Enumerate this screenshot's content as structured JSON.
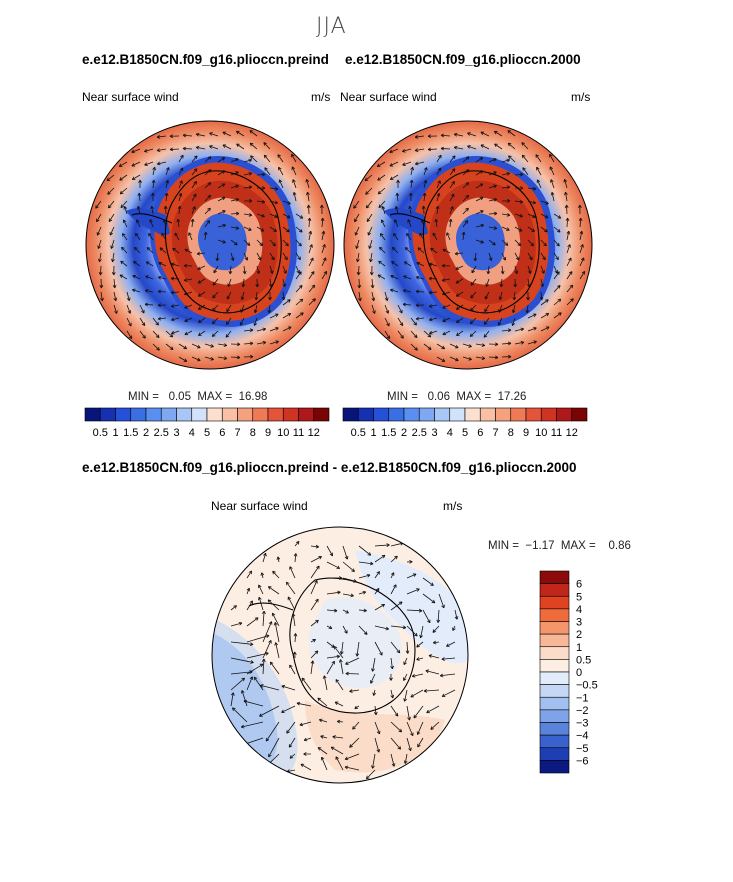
{
  "figure": {
    "season": "JJA",
    "panels": [
      {
        "title": "e.e12.B1850CN.f09_g16.plioccn.preind",
        "variable": "Near surface wind",
        "units": "m/s",
        "min_label": "MIN =",
        "min_value": "0.05",
        "max_label": "MAX =",
        "max_value": "16.98"
      },
      {
        "title": "e.e12.B1850CN.f09_g16.plioccn.2000",
        "variable": "Near surface wind",
        "units": "m/s",
        "min_label": "MIN =",
        "min_value": "0.06",
        "max_label": "MAX =",
        "max_value": "17.26"
      }
    ],
    "diff_panel": {
      "title": "e.e12.B1850CN.f09_g16.plioccn.preind - e.e12.B1850CN.f09_g16.plioccn.2000",
      "variable": "Near surface wind",
      "units": "m/s",
      "min_label": "MIN =",
      "min_value": "−1.17",
      "max_label": "MAX =",
      "max_value": "0.86"
    },
    "colorbar_abs": {
      "colors": [
        "#08147a",
        "#1530b0",
        "#2551d8",
        "#3a6fe4",
        "#5a8ef0",
        "#7fa8f2",
        "#a8c6f6",
        "#d2e2fa",
        "#fbe0d0",
        "#f9c0a6",
        "#f5a07f",
        "#ef7a56",
        "#e5543a",
        "#cf3322",
        "#b0171a",
        "#7a0404"
      ],
      "tick_labels": [
        "0.5",
        "1",
        "1.5",
        "2",
        "2.5",
        "3",
        "4",
        "5",
        "6",
        "7",
        "8",
        "9",
        "10",
        "11",
        "12"
      ]
    },
    "colorbar_diff": {
      "colors_top_to_bottom": [
        "#8c0a0a",
        "#c0261a",
        "#e0431f",
        "#f06b3c",
        "#f5956b",
        "#f8b898",
        "#fbdcc8",
        "#fdeee4",
        "#e3ecfa",
        "#c4d8f5",
        "#a2c0ef",
        "#7fa3e8",
        "#5a83dc",
        "#3a62cf",
        "#1e3fb4",
        "#0a1a82"
      ],
      "tick_labels": [
        "6",
        "5",
        "4",
        "3",
        "2",
        "1",
        "0.5",
        "0",
        "−0.5",
        "−1",
        "−2",
        "−3",
        "−4",
        "−5",
        "−6"
      ]
    }
  }
}
